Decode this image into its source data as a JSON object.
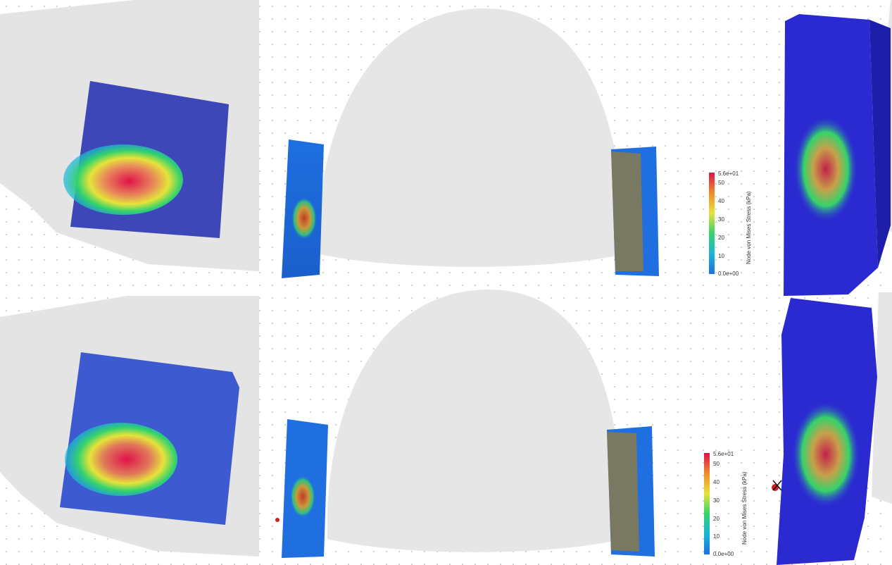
{
  "colorbar": {
    "title": "Node von Mises Stress (kPa)",
    "max_label": "5.6e+01",
    "min_label": "0.0e+00",
    "ticks": [
      "50",
      "40",
      "30",
      "20",
      "10"
    ],
    "colors": [
      "#1f6fe0",
      "#19b7d8",
      "#35d36a",
      "#e6e33a",
      "#f08a2a",
      "#e0124a"
    ]
  },
  "rows": [
    {
      "state": "top"
    },
    {
      "state": "bottom"
    }
  ]
}
